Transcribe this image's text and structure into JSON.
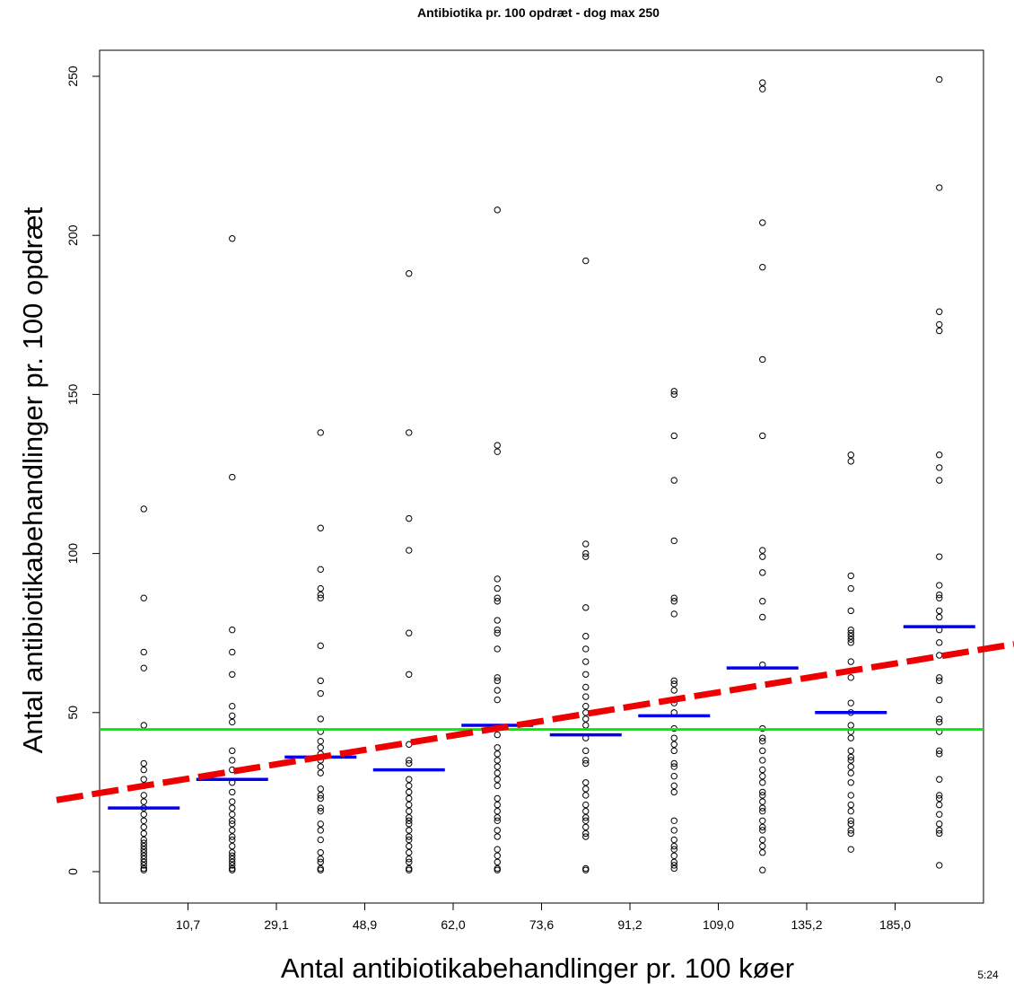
{
  "chart_data": {
    "type": "scatter",
    "title": "Antibiotika pr. 100 opdræt - dog max 250",
    "xlabel": "Antal antibiotikabehandlinger pr. 100 køer",
    "ylabel": "Antal antibiotikabehandlinger pr. 100 opdræt",
    "ylim": [
      -7,
      260
    ],
    "yticks": [
      0,
      50,
      100,
      150,
      200,
      250
    ],
    "group_boundary_labels": [
      "10,7",
      "29,1",
      "48,9",
      "62,0",
      "73,6",
      "91,2",
      "109,0",
      "135,2",
      "185,0"
    ],
    "groups": [
      {
        "points": [
          114,
          86,
          69,
          64,
          46,
          34,
          32,
          29,
          27,
          24,
          22,
          20,
          18,
          16,
          14,
          12,
          10,
          9,
          8,
          7,
          6,
          5,
          4,
          3,
          2,
          1,
          0.5
        ],
        "mean": 20
      },
      {
        "points": [
          199,
          124,
          76,
          69,
          62,
          52,
          49,
          47,
          38,
          35,
          32,
          28,
          25,
          22,
          20,
          18,
          16,
          15,
          13,
          11,
          10,
          8,
          6,
          5,
          4,
          3,
          2,
          1,
          0.5
        ],
        "mean": 29
      },
      {
        "points": [
          138,
          108,
          95,
          89,
          87,
          86,
          71,
          60,
          56,
          48,
          44,
          41,
          39,
          37,
          35,
          33,
          31,
          26,
          24,
          23,
          20,
          19,
          15,
          13,
          10,
          6,
          4,
          3,
          1,
          0.5
        ],
        "mean": 36
      },
      {
        "points": [
          188,
          138,
          111,
          101,
          75,
          62,
          40,
          35,
          34,
          29,
          27,
          25,
          23,
          21,
          19,
          17,
          16,
          15,
          13,
          11,
          10,
          8,
          6,
          4,
          3,
          1,
          0.5
        ],
        "mean": 32
      },
      {
        "points": [
          208,
          134,
          132,
          92,
          89,
          86,
          85,
          79,
          76,
          75,
          70,
          61,
          60,
          57,
          54,
          43,
          39,
          37,
          35,
          33,
          31,
          29,
          27,
          23,
          21,
          19,
          17,
          16,
          13,
          11,
          7,
          5,
          3,
          1,
          0.5
        ],
        "mean": 46
      },
      {
        "points": [
          192,
          103,
          100,
          99,
          83,
          74,
          70,
          66,
          62,
          58,
          55,
          52,
          50,
          48,
          46,
          42,
          38,
          35,
          34,
          28,
          26,
          24,
          21,
          19,
          17,
          16,
          14,
          12,
          11,
          1,
          0.5
        ],
        "mean": 43
      },
      {
        "points": [
          151,
          150,
          137,
          123,
          104,
          86,
          85,
          81,
          60,
          59,
          57,
          54,
          53,
          50,
          45,
          42,
          40,
          38,
          34,
          33,
          30,
          27,
          25,
          16,
          13,
          10,
          8,
          7,
          5,
          3,
          2,
          1
        ],
        "mean": 49
      },
      {
        "points": [
          248,
          246,
          204,
          190,
          161,
          137,
          101,
          99,
          94,
          85,
          80,
          65,
          45,
          42,
          41,
          38,
          35,
          32,
          30,
          28,
          25,
          24,
          22,
          20,
          19,
          16,
          14,
          13,
          10,
          8,
          6,
          0.5
        ],
        "mean": 64
      },
      {
        "points": [
          131,
          129,
          93,
          89,
          82,
          76,
          75,
          74,
          73,
          72,
          66,
          61,
          53,
          50,
          46,
          44,
          42,
          38,
          36,
          35,
          33,
          31,
          28,
          24,
          21,
          19,
          16,
          15,
          13,
          12,
          7
        ],
        "mean": 50
      },
      {
        "points": [
          249,
          215,
          176,
          172,
          170,
          131,
          127,
          123,
          99,
          90,
          87,
          86,
          82,
          80,
          76,
          72,
          68,
          61,
          60,
          54,
          48,
          47,
          44,
          38,
          37,
          29,
          24,
          23,
          21,
          18,
          15,
          13,
          12,
          2
        ],
        "mean": 77
      }
    ],
    "overall_mean": 44.7,
    "trend_line": {
      "y_start": 22.5,
      "y_end": 71.5
    },
    "colors": {
      "points": "#000000",
      "group_means": "#0000ee",
      "overall_mean": "#00ee00",
      "trend_line": "#ee0000"
    },
    "corner_text": "5:24"
  }
}
